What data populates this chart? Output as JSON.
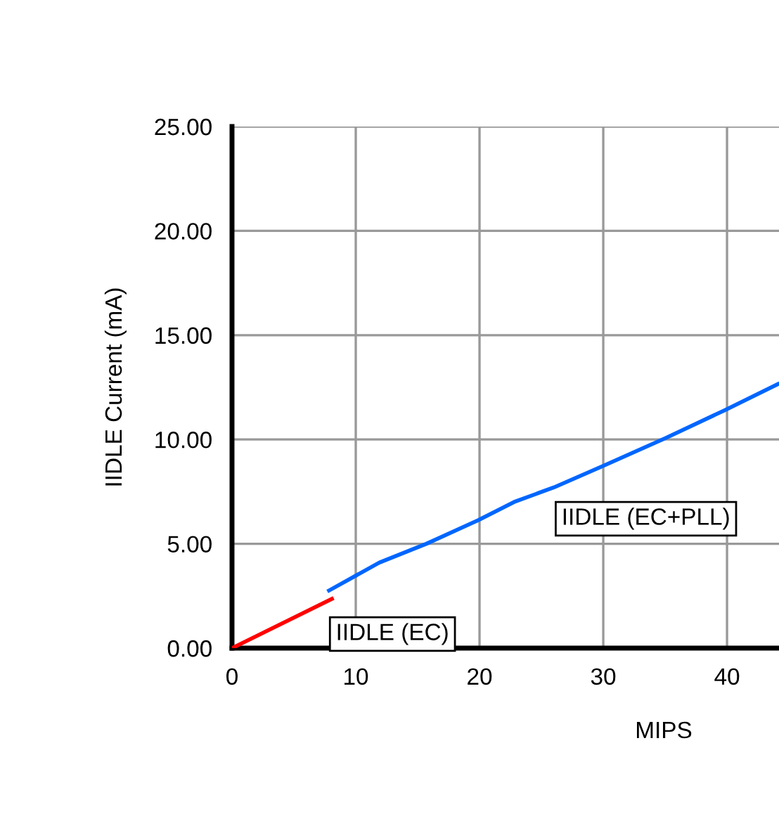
{
  "chart_data": {
    "type": "line",
    "xlabel": "MIPS",
    "ylabel": "IIDLE Current (mA)",
    "series": [
      {
        "x": [
          0,
          8.07
        ],
        "values": [
          0,
          2.36
        ],
        "color": "#ff0000"
      },
      {
        "x": [
          7.84,
          11.9,
          15.7,
          19.9,
          22.9,
          26.0,
          29.9,
          35.0,
          39.8,
          44.1
        ],
        "values": [
          2.76,
          4.1,
          5.0,
          6.13,
          7.03,
          7.7,
          8.71,
          10.06,
          11.4,
          12.65
        ],
        "color": "#0066ff"
      }
    ],
    "annotations": [
      {
        "text": "IIDLE (EC)",
        "x": 8.07,
        "y": 2.36
      },
      {
        "text": "IIDLE (EC+PLL)",
        "x": 26.0,
        "y": 7.7
      }
    ],
    "xlim": [
      0,
      44.2
    ],
    "xticks": [
      0,
      10,
      20,
      30,
      40
    ],
    "ylim": [
      0,
      25
    ],
    "yticks": [
      {
        "value": 0,
        "label": "0.00"
      },
      {
        "value": 5,
        "label": "5.00"
      },
      {
        "value": 10,
        "label": "10.00"
      },
      {
        "value": 15,
        "label": "15.00"
      },
      {
        "value": 20,
        "label": "20.00"
      },
      {
        "value": 25,
        "label": "25.00"
      }
    ],
    "grid": true,
    "marker": "none",
    "line_style": "solid"
  }
}
